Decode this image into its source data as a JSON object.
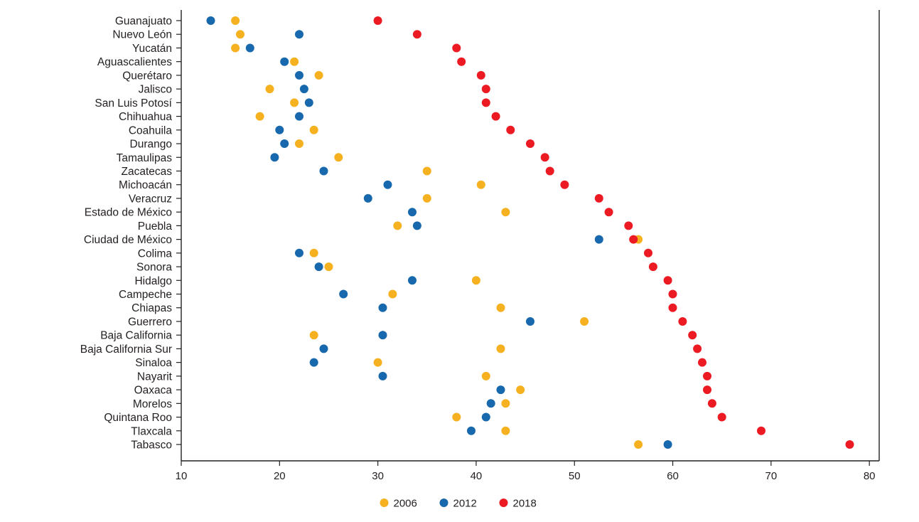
{
  "chart_data": {
    "type": "scatter",
    "variant": "cleveland-dot-plot",
    "title": "",
    "xlabel": "",
    "ylabel": "",
    "xlim": [
      10,
      81
    ],
    "xticks": [
      10,
      20,
      30,
      40,
      50,
      60,
      70,
      80
    ],
    "grid": false,
    "legend_position": "bottom-center",
    "axis_color": "#231f20",
    "dot_radius": 6,
    "categories": [
      "Guanajuato",
      "Nuevo León",
      "Yucatán",
      "Aguascalientes",
      "Querétaro",
      "Jalisco",
      "San Luis Potosí",
      "Chihuahua",
      "Coahuila",
      "Durango",
      "Tamaulipas",
      "Zacatecas",
      "Michoacán",
      "Veracruz",
      "Estado de México",
      "Puebla",
      "Ciudad de México",
      "Colima",
      "Sonora",
      "Hidalgo",
      "Campeche",
      "Chiapas",
      "Guerrero",
      "Baja California",
      "Baja California Sur",
      "Sinaloa",
      "Nayarit",
      "Oaxaca",
      "Morelos",
      "Quintana Roo",
      "Tlaxcala",
      "Tabasco"
    ],
    "series": [
      {
        "name": "2006",
        "color": "#F5B120",
        "values": [
          15.5,
          16,
          15.5,
          21.5,
          24,
          19,
          21.5,
          18,
          23.5,
          22,
          26,
          35,
          40.5,
          35,
          43,
          32,
          56.5,
          23.5,
          25,
          40,
          31.5,
          42.5,
          51,
          23.5,
          42.5,
          30,
          41,
          44.5,
          43,
          38,
          43,
          56.5
        ]
      },
      {
        "name": "2012",
        "color": "#1768AC",
        "values": [
          13,
          22,
          17,
          20.5,
          22,
          22.5,
          23,
          22,
          20,
          20.5,
          19.5,
          24.5,
          31,
          29,
          33.5,
          34,
          52.5,
          22,
          24,
          33.5,
          26.5,
          30.5,
          45.5,
          30.5,
          24.5,
          23.5,
          30.5,
          42.5,
          41.5,
          41,
          39.5,
          59.5
        ]
      },
      {
        "name": "2018",
        "color": "#EC1B23",
        "values": [
          30,
          34,
          38,
          38.5,
          40.5,
          41,
          41,
          42,
          43.5,
          45.5,
          47,
          47.5,
          49,
          52.5,
          53.5,
          55.5,
          56,
          57.5,
          58,
          59.5,
          60,
          60,
          61,
          62,
          62.5,
          63,
          63.5,
          63.5,
          64,
          65,
          69,
          78
        ]
      }
    ],
    "legend": [
      "2006",
      "2012",
      "2018"
    ]
  }
}
